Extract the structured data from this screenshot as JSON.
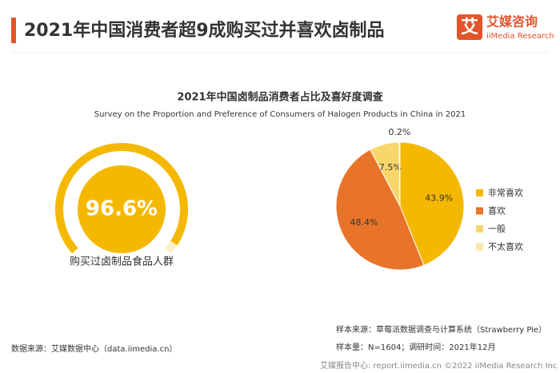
{
  "header": {
    "title": "2021年中国消费者超9成购买过并喜欢卤制品"
  },
  "logo": {
    "icon": "艾",
    "name": "艾媒咨询",
    "sub": "iiMedia Research"
  },
  "chart_title": "2021年中国卤制品消费者占比及喜好度调查",
  "chart_subtitle": "Survey on the Proportion and Preference of Consumers of Halogen Products in China in 2021",
  "chart_data": [
    {
      "type": "gauge",
      "value": 96.6,
      "value_labels": "96.6%",
      "label": "购买过卤制品食品人群",
      "ylim": [
        0,
        100
      ],
      "color": "#f5b800"
    },
    {
      "type": "pie",
      "categories": [
        "非常喜欢",
        "喜欢",
        "一般",
        "不太喜欢"
      ],
      "values": [
        43.9,
        48.4,
        7.5,
        0.2
      ],
      "value_labels": [
        "43.9%",
        "48.4%",
        "7.5%",
        "0.2%"
      ],
      "colors": [
        "#f5b800",
        "#e8742a",
        "#f8d66b",
        "#fbe7a8"
      ],
      "legend": "right"
    }
  ],
  "footer": {
    "sample_source": "样本来源：草莓派数据调查与计算系统（Strawberry Pie）",
    "sample_size": "样本量：N=1604；调研时间：2021年12月",
    "data_source": "数据来源：艾媒数据中心（data.iimedia.cn）",
    "watermark": "艾媒报告中心: report.iimedia.cn ©2022  iiMedia Research Inc"
  }
}
